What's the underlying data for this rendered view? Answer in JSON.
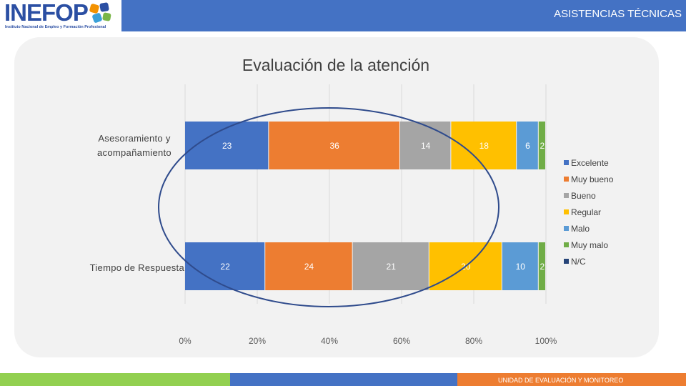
{
  "header": {
    "logo_text": "INEFOP",
    "logo_subtitle": "Instituto Nacional de Empleo y Formación Profesional",
    "title": "ASISTENCIAS TÉCNICAS",
    "bar_color": "#4472c4"
  },
  "footer": {
    "text": "UNIDAD DE EVALUACIÓN Y MONITOREO",
    "colors": [
      "#92d050",
      "#4472c4",
      "#ed7d31"
    ]
  },
  "chart_data": {
    "type": "bar",
    "orientation": "horizontal",
    "stacked": "percent",
    "title": "Evaluación de la atención",
    "categories": [
      "Asesoramiento y acompañamiento",
      "Tiempo de Respuesta"
    ],
    "x_ticks": [
      "0%",
      "20%",
      "40%",
      "60%",
      "80%",
      "100%"
    ],
    "xlim": [
      0,
      100
    ],
    "grid": true,
    "legend_position": "right",
    "series": [
      {
        "name": "Excelente",
        "color": "#4472c4",
        "values": [
          23,
          22
        ]
      },
      {
        "name": "Muy bueno",
        "color": "#ed7d31",
        "values": [
          36,
          24
        ]
      },
      {
        "name": "Bueno",
        "color": "#a5a5a5",
        "values": [
          14,
          21
        ]
      },
      {
        "name": "Regular",
        "color": "#ffc000",
        "values": [
          18,
          20
        ]
      },
      {
        "name": "Malo",
        "color": "#5b9bd5",
        "values": [
          6,
          10
        ]
      },
      {
        "name": "Muy malo",
        "color": "#70ad47",
        "values": [
          2,
          2
        ]
      },
      {
        "name": "N/C",
        "color": "#264478",
        "values": [
          0,
          0
        ]
      }
    ],
    "annotation": "ellipse around bars"
  }
}
